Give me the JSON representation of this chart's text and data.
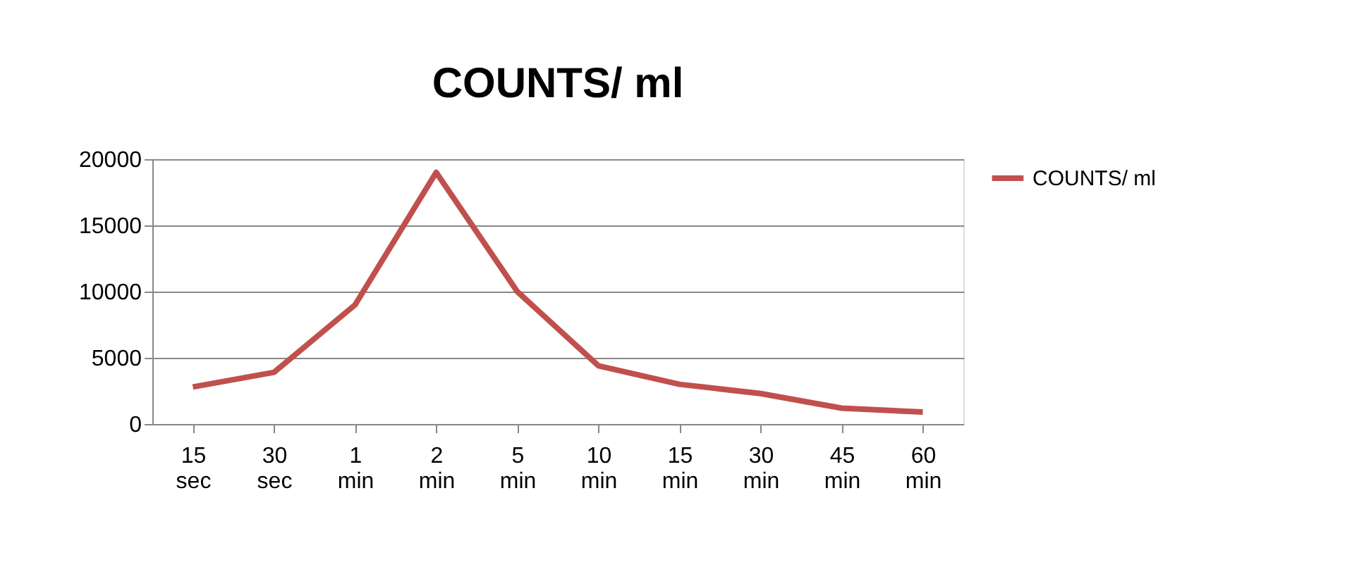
{
  "chart_data": {
    "type": "line",
    "title": "COUNTS/ ml",
    "categories": [
      "15 sec",
      "30 sec",
      "1 min",
      "2 min",
      "5 min",
      "10 min",
      "15 min",
      "30 min",
      "45 min",
      "60 min"
    ],
    "series": [
      {
        "name": "COUNTS/ ml",
        "color": "#c0504d",
        "values": [
          2800,
          3900,
          9000,
          19000,
          10000,
          4400,
          3000,
          2300,
          1200,
          900
        ]
      }
    ],
    "ylim": [
      0,
      20000
    ],
    "yticks": [
      0,
      5000,
      10000,
      15000,
      20000
    ],
    "grid": "y",
    "legend": "right",
    "marker": "none",
    "line_style": "solid"
  }
}
